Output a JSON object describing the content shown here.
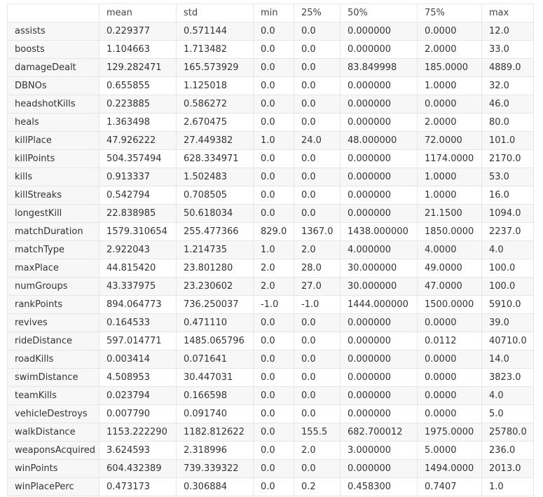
{
  "table": {
    "columns": [
      "",
      "mean",
      "std",
      "min",
      "25%",
      "50%",
      "75%",
      "max"
    ],
    "rows": [
      [
        "assists",
        "0.229377",
        "0.571144",
        "0.0",
        "0.0",
        "0.000000",
        "0.0000",
        "12.0"
      ],
      [
        "boosts",
        "1.104663",
        "1.713482",
        "0.0",
        "0.0",
        "0.000000",
        "2.0000",
        "33.0"
      ],
      [
        "damageDealt",
        "129.282471",
        "165.573929",
        "0.0",
        "0.0",
        "83.849998",
        "185.0000",
        "4889.0"
      ],
      [
        "DBNOs",
        "0.655855",
        "1.125018",
        "0.0",
        "0.0",
        "0.000000",
        "1.0000",
        "32.0"
      ],
      [
        "headshotKills",
        "0.223885",
        "0.586272",
        "0.0",
        "0.0",
        "0.000000",
        "0.0000",
        "46.0"
      ],
      [
        "heals",
        "1.363498",
        "2.670475",
        "0.0",
        "0.0",
        "0.000000",
        "2.0000",
        "80.0"
      ],
      [
        "killPlace",
        "47.926222",
        "27.449382",
        "1.0",
        "24.0",
        "48.000000",
        "72.0000",
        "101.0"
      ],
      [
        "killPoints",
        "504.357494",
        "628.334971",
        "0.0",
        "0.0",
        "0.000000",
        "1174.0000",
        "2170.0"
      ],
      [
        "kills",
        "0.913337",
        "1.502483",
        "0.0",
        "0.0",
        "0.000000",
        "1.0000",
        "53.0"
      ],
      [
        "killStreaks",
        "0.542794",
        "0.708505",
        "0.0",
        "0.0",
        "0.000000",
        "1.0000",
        "16.0"
      ],
      [
        "longestKill",
        "22.838985",
        "50.618034",
        "0.0",
        "0.0",
        "0.000000",
        "21.1500",
        "1094.0"
      ],
      [
        "matchDuration",
        "1579.310654",
        "255.477366",
        "829.0",
        "1367.0",
        "1438.000000",
        "1850.0000",
        "2237.0"
      ],
      [
        "matchType",
        "2.922043",
        "1.214735",
        "1.0",
        "2.0",
        "4.000000",
        "4.0000",
        "4.0"
      ],
      [
        "maxPlace",
        "44.815420",
        "23.801280",
        "2.0",
        "28.0",
        "30.000000",
        "49.0000",
        "100.0"
      ],
      [
        "numGroups",
        "43.337975",
        "23.230602",
        "2.0",
        "27.0",
        "30.000000",
        "47.0000",
        "100.0"
      ],
      [
        "rankPoints",
        "894.064773",
        "736.250037",
        "-1.0",
        "-1.0",
        "1444.000000",
        "1500.0000",
        "5910.0"
      ],
      [
        "revives",
        "0.164533",
        "0.471110",
        "0.0",
        "0.0",
        "0.000000",
        "0.0000",
        "39.0"
      ],
      [
        "rideDistance",
        "597.014771",
        "1485.065796",
        "0.0",
        "0.0",
        "0.000000",
        "0.0112",
        "40710.0"
      ],
      [
        "roadKills",
        "0.003414",
        "0.071641",
        "0.0",
        "0.0",
        "0.000000",
        "0.0000",
        "14.0"
      ],
      [
        "swimDistance",
        "4.508953",
        "30.447031",
        "0.0",
        "0.0",
        "0.000000",
        "0.0000",
        "3823.0"
      ],
      [
        "teamKills",
        "0.023794",
        "0.166598",
        "0.0",
        "0.0",
        "0.000000",
        "0.0000",
        "4.0"
      ],
      [
        "vehicleDestroys",
        "0.007790",
        "0.091740",
        "0.0",
        "0.0",
        "0.000000",
        "0.0000",
        "5.0"
      ],
      [
        "walkDistance",
        "1153.222290",
        "1182.812622",
        "0.0",
        "155.5",
        "682.700012",
        "1975.0000",
        "25780.0"
      ],
      [
        "weaponsAcquired",
        "3.624593",
        "2.318996",
        "0.0",
        "2.0",
        "3.000000",
        "5.0000",
        "236.0"
      ],
      [
        "winPoints",
        "604.432389",
        "739.339322",
        "0.0",
        "0.0",
        "0.000000",
        "1494.0000",
        "2013.0"
      ],
      [
        "winPlacePerc",
        "0.473173",
        "0.306884",
        "0.0",
        "0.2",
        "0.458300",
        "0.7407",
        "1.0"
      ]
    ]
  }
}
